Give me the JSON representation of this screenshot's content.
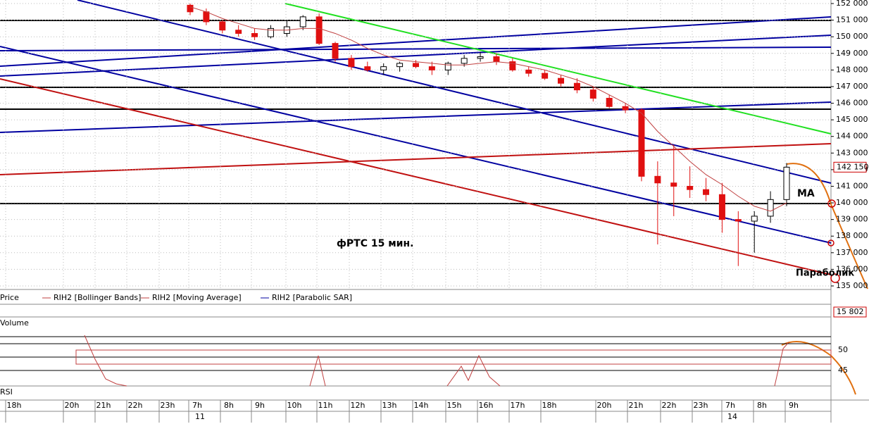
{
  "chart_data": {
    "type": "candlestick",
    "title": "фРТС   15 мин.",
    "ylim": [
      134800,
      152200
    ],
    "yticks": [
      {
        "value": 152000,
        "label": "152 000"
      },
      {
        "value": 151000,
        "label": "151 000"
      },
      {
        "value": 150000,
        "label": "150 000"
      },
      {
        "value": 149000,
        "label": "149 000"
      },
      {
        "value": 148000,
        "label": "148 000"
      },
      {
        "value": 147000,
        "label": "147 000"
      },
      {
        "value": 146000,
        "label": "146 000"
      },
      {
        "value": 145000,
        "label": "145 000"
      },
      {
        "value": 144000,
        "label": "144 000"
      },
      {
        "value": 143000,
        "label": "143 000"
      },
      {
        "value": 142000,
        "label": "142 000"
      },
      {
        "value": 141000,
        "label": "141 000"
      },
      {
        "value": 140000,
        "label": "140 000"
      },
      {
        "value": 139000,
        "label": "139 000"
      },
      {
        "value": 138000,
        "label": "138 000"
      },
      {
        "value": 137000,
        "label": "137 000"
      },
      {
        "value": 136000,
        "label": "136 000"
      },
      {
        "value": 135000,
        "label": "135 000"
      }
    ],
    "open": [
      151900,
      151500,
      150900,
      150400,
      150200,
      150000,
      150200,
      150600,
      151200,
      149600,
      148700,
      148200,
      148000,
      148200,
      148400,
      148200,
      148000,
      148400,
      148700,
      148800,
      148500,
      148000,
      147800,
      147500,
      147200,
      146800,
      146300,
      145800,
      145600,
      141600,
      141200,
      141000,
      140800,
      140500,
      139000,
      138900,
      139200,
      140200
    ],
    "high": [
      152000,
      151700,
      151000,
      150700,
      150500,
      150700,
      151000,
      151300,
      151400,
      149700,
      148900,
      148500,
      148400,
      148500,
      148600,
      148500,
      148500,
      148900,
      149100,
      149000,
      148700,
      148200,
      148000,
      147700,
      147500,
      147000,
      146500,
      146000,
      145700,
      142500,
      143500,
      142200,
      141500,
      141200,
      139500,
      139500,
      140700,
      142400
    ],
    "low": [
      151300,
      150700,
      150200,
      150000,
      149800,
      149900,
      150000,
      150400,
      149500,
      148500,
      148000,
      147900,
      147700,
      147900,
      148100,
      147700,
      147700,
      148200,
      148500,
      148300,
      147900,
      147600,
      147400,
      147000,
      146600,
      146100,
      145700,
      145400,
      141300,
      137500,
      139200,
      140300,
      140100,
      138200,
      136200,
      137000,
      138800,
      139800
    ],
    "close": [
      151500,
      150900,
      150400,
      150200,
      150000,
      150500,
      150600,
      151200,
      149600,
      148700,
      148200,
      148000,
      148200,
      148400,
      148200,
      148000,
      148400,
      148700,
      148800,
      148500,
      148000,
      147800,
      147500,
      147200,
      146800,
      146300,
      145800,
      145600,
      141600,
      141200,
      141000,
      140800,
      140500,
      139000,
      138900,
      139200,
      140200,
      142150
    ],
    "ma": [
      151800,
      151500,
      151100,
      150800,
      150500,
      150400,
      150400,
      150500,
      150500,
      150200,
      149800,
      149300,
      148900,
      148600,
      148500,
      148400,
      148300,
      148300,
      148400,
      148500,
      148400,
      148200,
      148000,
      147700,
      147400,
      147000,
      146500,
      146000,
      145400,
      144300,
      143400,
      142500,
      141700,
      141100,
      140400,
      139800,
      139500,
      140000
    ],
    "up_color": "#ffffff",
    "down_color": "#e01010",
    "ma_color": "#c04040",
    "last_price": {
      "value": 142150,
      "label": "142 150"
    },
    "legend": [
      "Price",
      "RIH2 [Bollinger Bands]",
      "RIH2 [Moving Average]",
      "RIH2 [Parabolic SAR]"
    ],
    "volume_label": "Volume",
    "volume_value": {
      "value": 15802,
      "label": "15 802"
    },
    "rsi_label": "RSI",
    "rsi_ticks": [
      "50",
      "45"
    ],
    "annotations": [
      "МА",
      "Параболик"
    ],
    "time_labels": [
      "18h",
      "20h",
      "21h",
      "22h",
      "23h",
      "7h",
      "8h",
      "9h",
      "10h",
      "11h",
      "12h",
      "13h",
      "14h",
      "15h",
      "16h",
      "17h",
      "18h",
      "20h",
      "21h",
      "22h",
      "23h",
      "7h",
      "8h",
      "9h"
    ],
    "date_labels": [
      "11",
      "14"
    ]
  }
}
